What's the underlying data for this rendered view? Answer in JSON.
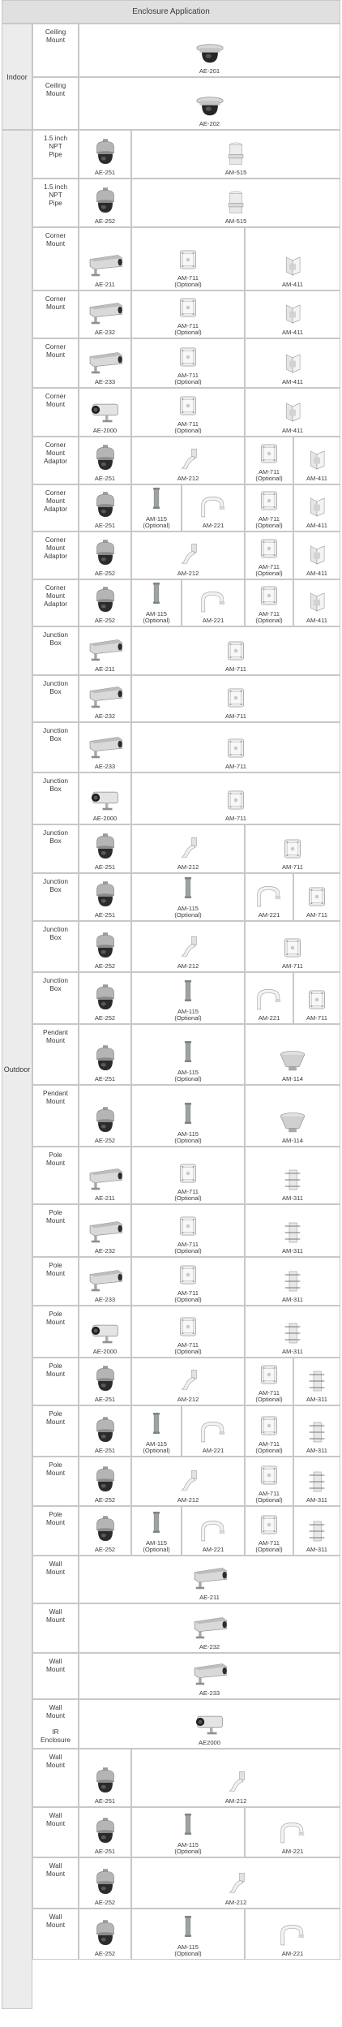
{
  "title": "Enclosure Application",
  "groups": {
    "indoor": "Indoor",
    "outdoor": "Outdoor"
  },
  "rows": [
    {
      "label": [
        "Ceiling",
        "Mount"
      ],
      "group": "indoor",
      "items": [
        {
          "code": "AE-201",
          "icon": "ceiling-dome-icon"
        }
      ]
    },
    {
      "label": [
        "Ceiling",
        "Mount"
      ],
      "group": "indoor",
      "items": [
        {
          "code": "AE-202",
          "icon": "ceiling-dome-icon"
        }
      ]
    },
    {
      "label": [
        "1.5 inch",
        "NPT",
        "Pipe"
      ],
      "group": "outdoor",
      "items": [
        {
          "code": "AE-251",
          "icon": "dome-icon"
        },
        {
          "code": "AM-515",
          "icon": "pipe-adaptor-icon"
        }
      ]
    },
    {
      "label": [
        "1.5 inch",
        "NPT",
        "Pipe"
      ],
      "group": "outdoor",
      "items": [
        {
          "code": "AE-252",
          "icon": "dome-icon"
        },
        {
          "code": "AM-515",
          "icon": "pipe-adaptor-icon"
        }
      ]
    },
    {
      "label": [
        "Corner",
        "Mount"
      ],
      "group": "outdoor",
      "items": [
        {
          "code": "AE-211",
          "icon": "box-camera-icon"
        },
        {
          "code": "AM-711",
          "note": "(Optional)",
          "icon": "junction-box-icon"
        },
        {
          "code": "AM-411",
          "icon": "corner-bracket-icon"
        }
      ]
    },
    {
      "label": [
        "Corner",
        "Mount"
      ],
      "group": "outdoor",
      "items": [
        {
          "code": "AE-232",
          "icon": "box-camera-icon"
        },
        {
          "code": "AM-711",
          "note": "(Optional)",
          "icon": "junction-box-icon"
        },
        {
          "code": "AM-411",
          "icon": "corner-bracket-icon"
        }
      ]
    },
    {
      "label": [
        "Corner",
        "Mount"
      ],
      "group": "outdoor",
      "items": [
        {
          "code": "AE-233",
          "icon": "box-camera-icon"
        },
        {
          "code": "AM-711",
          "note": "(Optional)",
          "icon": "junction-box-icon"
        },
        {
          "code": "AM-411",
          "icon": "corner-bracket-icon"
        }
      ]
    },
    {
      "label": [
        "Corner",
        "Mount"
      ],
      "group": "outdoor",
      "items": [
        {
          "code": "AE-2000",
          "icon": "ir-camera-icon"
        },
        {
          "code": "AM-711",
          "note": "(Optional)",
          "icon": "junction-box-icon"
        },
        {
          "code": "AM-411",
          "icon": "corner-bracket-icon"
        }
      ]
    },
    {
      "label": [
        "Corner",
        "Mount",
        "Adaptor"
      ],
      "group": "outdoor",
      "items": [
        {
          "code": "AE-251",
          "icon": "dome-icon"
        },
        {
          "code": "AM-212",
          "icon": "wall-arm-icon"
        },
        {
          "code": "AM-711",
          "note": "(Optional)",
          "icon": "junction-box-icon"
        },
        {
          "code": "AM-411",
          "icon": "corner-bracket-icon"
        }
      ]
    },
    {
      "label": [
        "Corner",
        "Mount",
        "Adaptor"
      ],
      "group": "outdoor",
      "items": [
        {
          "code": "AE-251",
          "icon": "dome-icon"
        },
        {
          "code": "AM-115",
          "note": "(Optional)",
          "icon": "extension-pole-icon"
        },
        {
          "code": "AM-221",
          "icon": "gooseneck-icon"
        },
        {
          "code": "AM-711",
          "note": "(Optional)",
          "icon": "junction-box-icon"
        },
        {
          "code": "AM-411",
          "icon": "corner-bracket-icon"
        }
      ]
    },
    {
      "label": [
        "Corner",
        "Mount",
        "Adaptor"
      ],
      "group": "outdoor",
      "items": [
        {
          "code": "AE-252",
          "icon": "dome-icon"
        },
        {
          "code": "AM-212",
          "icon": "wall-arm-icon"
        },
        {
          "code": "AM-711",
          "note": "(Optional)",
          "icon": "junction-box-icon"
        },
        {
          "code": "AM-411",
          "icon": "corner-bracket-icon"
        }
      ]
    },
    {
      "label": [
        "Corner",
        "Mount",
        "Adaptor"
      ],
      "group": "outdoor",
      "items": [
        {
          "code": "AE-252",
          "icon": "dome-icon"
        },
        {
          "code": "AM-115",
          "note": "(Optional)",
          "icon": "extension-pole-icon"
        },
        {
          "code": "AM-221",
          "icon": "gooseneck-icon"
        },
        {
          "code": "AM-711",
          "note": "(Optional)",
          "icon": "junction-box-icon"
        },
        {
          "code": "AM-411",
          "icon": "corner-bracket-icon"
        }
      ]
    },
    {
      "label": [
        "Junction",
        "Box"
      ],
      "group": "outdoor",
      "items": [
        {
          "code": "AE-211",
          "icon": "box-camera-icon"
        },
        {
          "code": "AM-711",
          "icon": "junction-box-icon"
        }
      ]
    },
    {
      "label": [
        "Junction",
        "Box"
      ],
      "group": "outdoor",
      "items": [
        {
          "code": "AE-232",
          "icon": "box-camera-icon"
        },
        {
          "code": "AM-711",
          "icon": "junction-box-icon"
        }
      ]
    },
    {
      "label": [
        "Junction",
        "Box"
      ],
      "group": "outdoor",
      "items": [
        {
          "code": "AE-233",
          "icon": "box-camera-icon"
        },
        {
          "code": "AM-711",
          "icon": "junction-box-icon"
        }
      ]
    },
    {
      "label": [
        "Junction",
        "Box"
      ],
      "group": "outdoor",
      "items": [
        {
          "code": "AE-2000",
          "icon": "ir-camera-icon"
        },
        {
          "code": "AM-711",
          "icon": "junction-box-icon"
        }
      ]
    },
    {
      "label": [
        "Junction",
        "Box"
      ],
      "group": "outdoor",
      "items": [
        {
          "code": "AE-251",
          "icon": "dome-icon"
        },
        {
          "code": "AM-212",
          "icon": "wall-arm-icon"
        },
        {
          "code": "AM-711",
          "icon": "junction-box-icon"
        }
      ]
    },
    {
      "label": [
        "Junction",
        "Box"
      ],
      "group": "outdoor",
      "items": [
        {
          "code": "AE-251",
          "icon": "dome-icon"
        },
        {
          "code": "AM-115",
          "note": "(Optional)",
          "icon": "extension-pole-icon"
        },
        {
          "code": "AM-221",
          "icon": "gooseneck-icon"
        },
        {
          "code": "AM-711",
          "icon": "junction-box-icon"
        }
      ]
    },
    {
      "label": [
        "Junction",
        "Box"
      ],
      "group": "outdoor",
      "items": [
        {
          "code": "AE-252",
          "icon": "dome-icon"
        },
        {
          "code": "AM-212",
          "icon": "wall-arm-icon"
        },
        {
          "code": "AM-711",
          "icon": "junction-box-icon"
        }
      ]
    },
    {
      "label": [
        "Junction",
        "Box"
      ],
      "group": "outdoor",
      "items": [
        {
          "code": "AE-252",
          "icon": "dome-icon"
        },
        {
          "code": "AM-115",
          "note": "(Optional)",
          "icon": "extension-pole-icon"
        },
        {
          "code": "AM-221",
          "icon": "gooseneck-icon"
        },
        {
          "code": "AM-711",
          "icon": "junction-box-icon"
        }
      ]
    },
    {
      "label": [
        "Pendant",
        "Mount"
      ],
      "group": "outdoor",
      "items": [
        {
          "code": "AE-251",
          "icon": "dome-icon"
        },
        {
          "code": "AM-115",
          "note": "(Optional)",
          "icon": "extension-pole-icon"
        },
        {
          "code": "AM-114",
          "icon": "pendant-cap-icon"
        }
      ]
    },
    {
      "label": [
        "Pendant",
        "Mount"
      ],
      "group": "outdoor",
      "items": [
        {
          "code": "AE-252",
          "icon": "dome-icon"
        },
        {
          "code": "AM-115",
          "note": "(Optional)",
          "icon": "extension-pole-icon"
        },
        {
          "code": "AM-114",
          "icon": "pendant-cap-icon"
        }
      ]
    },
    {
      "label": [
        "Pole",
        "Mount"
      ],
      "group": "outdoor",
      "items": [
        {
          "code": "AE-211",
          "icon": "box-camera-icon"
        },
        {
          "code": "AM-711",
          "note": "(Optional)",
          "icon": "junction-box-icon"
        },
        {
          "code": "AM-311",
          "icon": "pole-bracket-icon"
        }
      ]
    },
    {
      "label": [
        "Pole",
        "Mount"
      ],
      "group": "outdoor",
      "items": [
        {
          "code": "AE-232",
          "icon": "box-camera-icon"
        },
        {
          "code": "AM-711",
          "note": "(Optional)",
          "icon": "junction-box-icon"
        },
        {
          "code": "AM-311",
          "icon": "pole-bracket-icon"
        }
      ]
    },
    {
      "label": [
        "Pole",
        "Mount"
      ],
      "group": "outdoor",
      "items": [
        {
          "code": "AE-233",
          "icon": "box-camera-icon"
        },
        {
          "code": "AM-711",
          "note": "(Optional)",
          "icon": "junction-box-icon"
        },
        {
          "code": "AM-311",
          "icon": "pole-bracket-icon"
        }
      ]
    },
    {
      "label": [
        "Pole",
        "Mount"
      ],
      "group": "outdoor",
      "items": [
        {
          "code": "AE-2000",
          "icon": "ir-camera-icon"
        },
        {
          "code": "AM-711",
          "note": "(Optional)",
          "icon": "junction-box-icon"
        },
        {
          "code": "AM-311",
          "icon": "pole-bracket-icon"
        }
      ]
    },
    {
      "label": [
        "Pole",
        "Mount"
      ],
      "group": "outdoor",
      "items": [
        {
          "code": "AE-251",
          "icon": "dome-icon"
        },
        {
          "code": "AM-212",
          "icon": "wall-arm-icon"
        },
        {
          "code": "AM-711",
          "note": "(Optional)",
          "icon": "junction-box-icon"
        },
        {
          "code": "AM-311",
          "icon": "pole-bracket-icon"
        }
      ]
    },
    {
      "label": [
        "Pole",
        "Mount"
      ],
      "group": "outdoor",
      "items": [
        {
          "code": "AE-251",
          "icon": "dome-icon"
        },
        {
          "code": "AM-115",
          "note": "(Optional)",
          "icon": "extension-pole-icon"
        },
        {
          "code": "AM-221",
          "icon": "gooseneck-icon"
        },
        {
          "code": "AM-711",
          "note": "(Optional)",
          "icon": "junction-box-icon"
        },
        {
          "code": "AM-311",
          "icon": "pole-bracket-icon"
        }
      ]
    },
    {
      "label": [
        "Pole",
        "Mount"
      ],
      "group": "outdoor",
      "items": [
        {
          "code": "AE-252",
          "icon": "dome-icon"
        },
        {
          "code": "AM-212",
          "icon": "wall-arm-icon"
        },
        {
          "code": "AM-711",
          "note": "(Optional)",
          "icon": "junction-box-icon"
        },
        {
          "code": "AM-311",
          "icon": "pole-bracket-icon"
        }
      ]
    },
    {
      "label": [
        "Pole",
        "Mount"
      ],
      "group": "outdoor",
      "items": [
        {
          "code": "AE-252",
          "icon": "dome-icon"
        },
        {
          "code": "AM-115",
          "note": "(Optional)",
          "icon": "extension-pole-icon"
        },
        {
          "code": "AM-221",
          "icon": "gooseneck-icon"
        },
        {
          "code": "AM-711",
          "note": "(Optional)",
          "icon": "junction-box-icon"
        },
        {
          "code": "AM-311",
          "icon": "pole-bracket-icon"
        }
      ]
    },
    {
      "label": [
        "Wall",
        "Mount"
      ],
      "group": "outdoor",
      "items": [
        {
          "code": "AE-211",
          "icon": "box-camera-icon"
        }
      ]
    },
    {
      "label": [
        "Wall",
        "Mount"
      ],
      "group": "outdoor",
      "items": [
        {
          "code": "AE-232",
          "icon": "box-camera-icon"
        }
      ]
    },
    {
      "label": [
        "Wall",
        "Mount"
      ],
      "group": "outdoor",
      "items": [
        {
          "code": "AE-233",
          "icon": "box-camera-icon"
        }
      ]
    },
    {
      "label": [
        "Wall",
        "Mount",
        "",
        "IR",
        "Enclosure"
      ],
      "group": "outdoor",
      "items": [
        {
          "code": "AE2000",
          "icon": "ir-camera-icon"
        }
      ]
    },
    {
      "label": [
        "Wall",
        "Mount"
      ],
      "group": "outdoor",
      "items": [
        {
          "code": "AE-251",
          "icon": "dome-icon"
        },
        {
          "code": "AM-212",
          "icon": "wall-arm-icon"
        }
      ]
    },
    {
      "label": [
        "Wall",
        "Mount"
      ],
      "group": "outdoor",
      "items": [
        {
          "code": "AE-251",
          "icon": "dome-icon"
        },
        {
          "code": "AM-115",
          "note": "(Optional)",
          "icon": "extension-pole-icon"
        },
        {
          "code": "AM-221",
          "icon": "gooseneck-icon"
        }
      ]
    },
    {
      "label": [
        "Wall",
        "Mount"
      ],
      "group": "outdoor",
      "items": [
        {
          "code": "AE-252",
          "icon": "dome-icon"
        },
        {
          "code": "AM-212",
          "icon": "wall-arm-icon"
        }
      ]
    },
    {
      "label": [
        "Wall",
        "Mount"
      ],
      "group": "outdoor",
      "items": [
        {
          "code": "AE-252",
          "icon": "dome-icon"
        },
        {
          "code": "AM-115",
          "note": "(Optional)",
          "icon": "extension-pole-icon"
        },
        {
          "code": "AM-221",
          "icon": "gooseneck-icon"
        }
      ]
    }
  ]
}
